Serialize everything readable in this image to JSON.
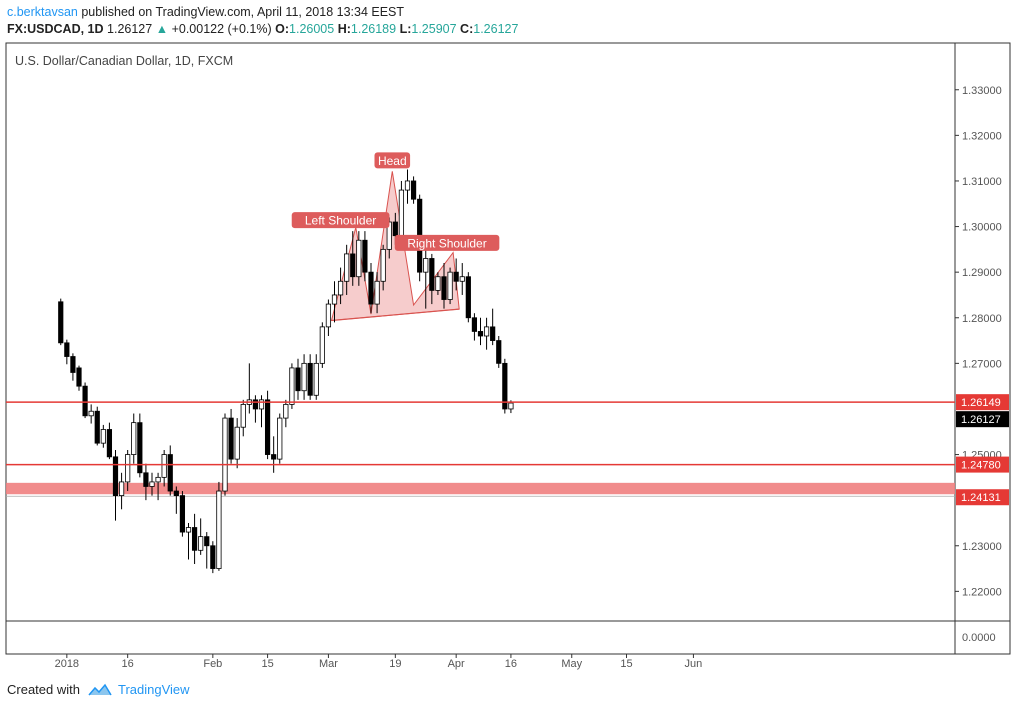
{
  "header": {
    "author": "c.berktavsan",
    "published_text": "published on TradingView.com, April 11, 2018 13:34 EEST"
  },
  "quote": {
    "symbol": "FX:USDCAD, 1D",
    "last": "1.26127",
    "arrow": "▲",
    "change": "+0.00122 (+0.1%)",
    "o_label": "O:",
    "o": "1.26005",
    "h_label": "H:",
    "h": "1.26189",
    "l_label": "L:",
    "l": "1.25907",
    "c_label": "C:",
    "c": "1.26127"
  },
  "footer": {
    "created_with": "Created with",
    "brand": "TradingView"
  },
  "colors": {
    "line_red": "#e53935",
    "zone": "#f08080",
    "pattern_fill": "#f2b6b6",
    "pattern_stroke": "#d9534f",
    "label_bg": "#dd5c5c",
    "axis_text": "#555555",
    "grid": "#333333"
  },
  "chart_data": {
    "type": "candlestick",
    "title": "U.S. Dollar/Canadian Dollar, 1D, FXCM",
    "yticks": [
      1.33,
      1.32,
      1.31,
      1.3,
      1.29,
      1.28,
      1.27,
      1.25,
      1.23,
      1.22
    ],
    "ytick_labels": [
      "1.33000",
      "1.32000",
      "1.31000",
      "1.30000",
      "1.29000",
      "1.28000",
      "1.27000",
      "1.25000",
      "1.23000",
      "1.22000"
    ],
    "ylim": [
      1.2135,
      1.3385
    ],
    "volume_label": "0.0000",
    "xlim": [
      -9,
      147
    ],
    "xticks": [
      {
        "label": "2018",
        "i": 1
      },
      {
        "label": "16",
        "i": 11
      },
      {
        "label": "Feb",
        "i": 25
      },
      {
        "label": "15",
        "i": 34
      },
      {
        "label": "Mar",
        "i": 44
      },
      {
        "label": "19",
        "i": 55
      },
      {
        "label": "Apr",
        "i": 65
      },
      {
        "label": "16",
        "i": 74
      },
      {
        "label": "May",
        "i": 84
      },
      {
        "label": "15",
        "i": 93
      },
      {
        "label": "Jun",
        "i": 104
      }
    ],
    "price_lines": [
      {
        "value": 1.26149,
        "label": "1.26149"
      },
      {
        "value": 1.2478,
        "label": "1.24780"
      }
    ],
    "zone": {
      "from": 1.2413,
      "to": 1.2438,
      "label": "1.24131"
    },
    "last_price": {
      "value": 1.26127,
      "label": "1.26127"
    },
    "annotations": [
      {
        "text": "Left Shoulder",
        "x": 46,
        "y": 1.3012
      },
      {
        "text": "Head",
        "x": 54.5,
        "y": 1.3143
      },
      {
        "text": "Right Shoulder",
        "x": 63.5,
        "y": 1.2962
      }
    ],
    "pattern": {
      "points": [
        [
          44.5,
          1.2794
        ],
        [
          48.5,
          1.2998
        ],
        [
          51,
          1.2808
        ],
        [
          54.5,
          1.3121
        ],
        [
          58,
          1.2828
        ],
        [
          64.5,
          1.2943
        ],
        [
          65.5,
          1.2819
        ]
      ],
      "neckline": [
        [
          44.5,
          1.2794
        ],
        [
          65.5,
          1.2819
        ]
      ]
    },
    "candles": [
      [
        1.2835,
        1.2842,
        1.274,
        1.2745
      ],
      [
        1.2745,
        1.2752,
        1.2698,
        1.2715
      ],
      [
        1.2715,
        1.2722,
        1.2662,
        1.268
      ],
      [
        1.269,
        1.2695,
        1.264,
        1.265
      ],
      [
        1.265,
        1.2658,
        1.258,
        1.2585
      ],
      [
        1.2585,
        1.261,
        1.2568,
        1.2595
      ],
      [
        1.2595,
        1.2605,
        1.252,
        1.2525
      ],
      [
        1.2525,
        1.2565,
        1.2515,
        1.2555
      ],
      [
        1.2555,
        1.257,
        1.249,
        1.2495
      ],
      [
        1.2495,
        1.251,
        1.2355,
        1.241
      ],
      [
        1.241,
        1.246,
        1.238,
        1.244
      ],
      [
        1.244,
        1.251,
        1.242,
        1.25
      ],
      [
        1.25,
        1.259,
        1.248,
        1.257
      ],
      [
        1.257,
        1.259,
        1.245,
        1.246
      ],
      [
        1.246,
        1.248,
        1.24,
        1.243
      ],
      [
        1.243,
        1.246,
        1.241,
        1.244
      ],
      [
        1.244,
        1.246,
        1.24,
        1.245
      ],
      [
        1.245,
        1.251,
        1.243,
        1.25
      ],
      [
        1.25,
        1.252,
        1.241,
        1.242
      ],
      [
        1.242,
        1.243,
        1.237,
        1.241
      ],
      [
        1.241,
        1.242,
        1.232,
        1.233
      ],
      [
        1.233,
        1.235,
        1.227,
        1.234
      ],
      [
        1.234,
        1.237,
        1.226,
        1.229
      ],
      [
        1.229,
        1.236,
        1.228,
        1.232
      ],
      [
        1.232,
        1.233,
        1.225,
        1.23
      ],
      [
        1.23,
        1.231,
        1.224,
        1.225
      ],
      [
        1.225,
        1.244,
        1.2245,
        1.242
      ],
      [
        1.242,
        1.259,
        1.241,
        1.258
      ],
      [
        1.258,
        1.26,
        1.248,
        1.249
      ],
      [
        1.249,
        1.258,
        1.247,
        1.256
      ],
      [
        1.256,
        1.262,
        1.254,
        1.261
      ],
      [
        1.261,
        1.27,
        1.259,
        1.262
      ],
      [
        1.262,
        1.263,
        1.257,
        1.26
      ],
      [
        1.26,
        1.263,
        1.256,
        1.262
      ],
      [
        1.262,
        1.264,
        1.249,
        1.25
      ],
      [
        1.25,
        1.254,
        1.246,
        1.249
      ],
      [
        1.249,
        1.259,
        1.248,
        1.258
      ],
      [
        1.258,
        1.262,
        1.256,
        1.261
      ],
      [
        1.261,
        1.27,
        1.26,
        1.269
      ],
      [
        1.269,
        1.271,
        1.262,
        1.264
      ],
      [
        1.264,
        1.272,
        1.262,
        1.27
      ],
      [
        1.27,
        1.272,
        1.262,
        1.263
      ],
      [
        1.263,
        1.272,
        1.262,
        1.27
      ],
      [
        1.27,
        1.279,
        1.269,
        1.278
      ],
      [
        1.278,
        1.284,
        1.276,
        1.283
      ],
      [
        1.283,
        1.288,
        1.279,
        1.285
      ],
      [
        1.285,
        1.291,
        1.283,
        1.288
      ],
      [
        1.288,
        1.296,
        1.285,
        1.294
      ],
      [
        1.294,
        1.299,
        1.287,
        1.289
      ],
      [
        1.289,
        1.299,
        1.287,
        1.297
      ],
      [
        1.297,
        1.299,
        1.288,
        1.29
      ],
      [
        1.29,
        1.292,
        1.281,
        1.283
      ],
      [
        1.283,
        1.29,
        1.281,
        1.288
      ],
      [
        1.288,
        1.296,
        1.286,
        1.295
      ],
      [
        1.295,
        1.302,
        1.293,
        1.301
      ],
      [
        1.301,
        1.303,
        1.296,
        1.298
      ],
      [
        1.298,
        1.31,
        1.297,
        1.308
      ],
      [
        1.308,
        1.3125,
        1.305,
        1.31
      ],
      [
        1.31,
        1.311,
        1.305,
        1.306
      ],
      [
        1.306,
        1.307,
        1.288,
        1.29
      ],
      [
        1.29,
        1.295,
        1.282,
        1.293
      ],
      [
        1.293,
        1.294,
        1.283,
        1.286
      ],
      [
        1.286,
        1.29,
        1.285,
        1.289
      ],
      [
        1.289,
        1.292,
        1.282,
        1.284
      ],
      [
        1.284,
        1.291,
        1.283,
        1.29
      ],
      [
        1.29,
        1.293,
        1.286,
        1.288
      ],
      [
        1.288,
        1.292,
        1.285,
        1.289
      ],
      [
        1.289,
        1.29,
        1.279,
        1.28
      ],
      [
        1.28,
        1.281,
        1.275,
        1.277
      ],
      [
        1.277,
        1.28,
        1.274,
        1.276
      ],
      [
        1.276,
        1.28,
        1.273,
        1.278
      ],
      [
        1.278,
        1.282,
        1.274,
        1.275
      ],
      [
        1.275,
        1.276,
        1.269,
        1.27
      ],
      [
        1.27,
        1.271,
        1.259,
        1.26
      ],
      [
        1.26,
        1.2619,
        1.2591,
        1.2613
      ]
    ]
  }
}
